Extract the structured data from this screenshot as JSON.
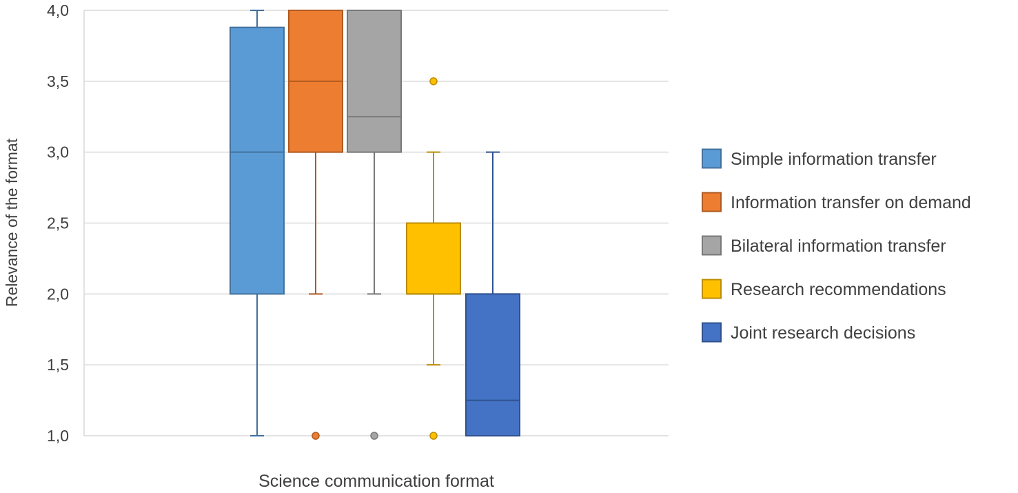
{
  "chart_data": {
    "type": "boxplot",
    "title": "",
    "xlabel": "Science communication format",
    "ylabel": "Relevance of the format",
    "ylim": [
      1.0,
      4.0
    ],
    "yticks": [
      "1,0",
      "1,5",
      "2,0",
      "2,5",
      "3,0",
      "3,5",
      "4,0"
    ],
    "ytick_values": [
      1.0,
      1.5,
      2.0,
      2.5,
      3.0,
      3.5,
      4.0
    ],
    "grid": true,
    "legend_position": "right",
    "series": [
      {
        "name": "Simple information transfer",
        "color": "#5B9BD5",
        "edge": "#41719C",
        "whisker_low": 1.0,
        "q1": 2.0,
        "median": 3.0,
        "q3": 3.88,
        "whisker_high": 4.0,
        "outliers": []
      },
      {
        "name": "Information transfer on demand",
        "color": "#ED7D31",
        "edge": "#AE5A21",
        "whisker_low": 2.0,
        "q1": 3.0,
        "median": 3.5,
        "q3": 4.0,
        "whisker_high": 4.0,
        "outliers": [
          1.0
        ]
      },
      {
        "name": "Bilateral information transfer",
        "color": "#A5A5A5",
        "edge": "#787878",
        "whisker_low": 2.0,
        "q1": 3.0,
        "median": 3.25,
        "q3": 4.0,
        "whisker_high": 4.0,
        "outliers": [
          1.0
        ]
      },
      {
        "name": "Research recommendations",
        "color": "#FFC000",
        "edge": "#BC8C00",
        "whisker_low": 1.5,
        "q1": 2.0,
        "median": 2.0,
        "q3": 2.5,
        "whisker_high": 3.0,
        "outliers": [
          3.5,
          1.0
        ]
      },
      {
        "name": "Joint research decisions",
        "color": "#4472C4",
        "edge": "#2F528F",
        "whisker_low": 1.0,
        "q1": 1.0,
        "median": 1.25,
        "q3": 2.0,
        "whisker_high": 3.0,
        "outliers": []
      }
    ]
  }
}
